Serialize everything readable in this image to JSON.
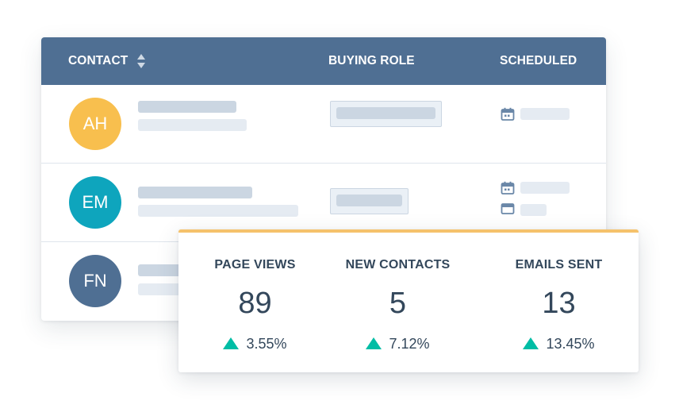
{
  "table": {
    "headers": {
      "contact": "CONTACT",
      "buying_role": "BUYING ROLE",
      "scheduled": "SCHEDULED"
    },
    "rows": [
      {
        "initials": "AH",
        "avatar_color": "#f8bf4e"
      },
      {
        "initials": "EM",
        "avatar_color": "#0ea5bd"
      },
      {
        "initials": "FN",
        "avatar_color": "#4f6f93"
      }
    ]
  },
  "stats": [
    {
      "label": "PAGE VIEWS",
      "value": "89",
      "change": "3.55%",
      "trend": "up"
    },
    {
      "label": "NEW CONTACTS",
      "value": "5",
      "change": "7.12%",
      "trend": "up"
    },
    {
      "label": "EMAILS SENT",
      "value": "13",
      "change": "13.45%",
      "trend": "up"
    }
  ],
  "colors": {
    "header_bg": "#4f6f93",
    "accent_top": "#f5c26b",
    "trend_up": "#00bda5",
    "text_dark": "#33475b",
    "placeholder": "#cbd6e2"
  },
  "icons": {
    "sort": "sort-icon",
    "calendar": "calendar-icon",
    "email": "email-icon",
    "trend_up": "triangle-up-icon"
  }
}
